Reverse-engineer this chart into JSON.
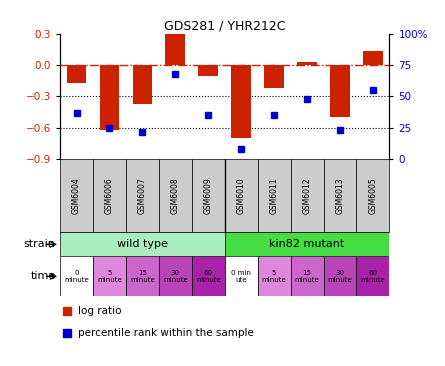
{
  "title": "GDS281 / YHR212C",
  "samples": [
    "GSM6004",
    "GSM6006",
    "GSM6007",
    "GSM6008",
    "GSM6009",
    "GSM6010",
    "GSM6011",
    "GSM6012",
    "GSM6013",
    "GSM6005"
  ],
  "log_ratio": [
    -0.17,
    -0.62,
    -0.37,
    0.3,
    -0.1,
    -0.7,
    -0.22,
    0.03,
    -0.5,
    0.13
  ],
  "percentile": [
    37,
    25,
    22,
    68,
    35,
    8,
    35,
    48,
    23,
    55
  ],
  "ylim_left": [
    -0.9,
    0.3
  ],
  "ylim_right": [
    0,
    100
  ],
  "yticks_left": [
    -0.9,
    -0.6,
    -0.3,
    0.0,
    0.3
  ],
  "yticks_right": [
    0,
    25,
    50,
    75,
    100
  ],
  "ytick_labels_right": [
    "0",
    "25",
    "50",
    "75",
    "100%"
  ],
  "strain_labels": [
    "wild type",
    "kin82 mutant"
  ],
  "time_labels": [
    "0\nminute",
    "5\nminute",
    "15\nminute",
    "30\nminute",
    "60\nminute",
    "0 min\nute",
    "5\nminute",
    "15\nminute",
    "30\nminute",
    "60\nminute"
  ],
  "time_colors": [
    "#ffffff",
    "#dd88dd",
    "#cc66cc",
    "#bb44bb",
    "#aa22aa",
    "#ffffff",
    "#dd88dd",
    "#cc66cc",
    "#bb44bb",
    "#aa22aa"
  ],
  "wt_color": "#aaeebb",
  "mut_color": "#44dd44",
  "bar_color": "#cc2200",
  "dot_color": "#0000cc",
  "legend_bar_label": "log ratio",
  "legend_dot_label": "percentile rank within the sample",
  "bg_color": "#ffffff",
  "zero_line_color": "#cc2200",
  "hline_color": "#000000",
  "sample_box_color": "#cccccc"
}
